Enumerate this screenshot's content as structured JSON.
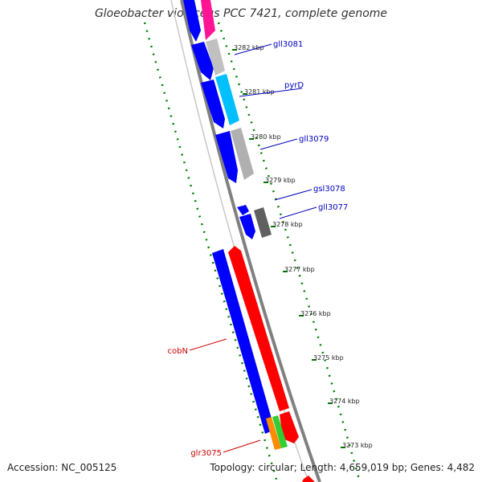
{
  "title": "Gloeobacter violaceus PCC 7421, complete genome",
  "footer": {
    "accession": "Accession: NC_005125",
    "summary": "Topology: circular; Length: 4,659,019 bp; Genes: 4,482"
  },
  "colors": {
    "forward_cds": "#ff0000",
    "reverse_cds": "#0000ff",
    "backbone": "#808080",
    "tick": "#008000",
    "label_reverse": "#0000c0",
    "label_forward": "#cc0000"
  },
  "ticks": [
    {
      "label": "3282 kbp"
    },
    {
      "label": "3281 kbp"
    },
    {
      "label": "3280 kbp"
    },
    {
      "label": "3279 kbp"
    },
    {
      "label": "3278 kbp"
    },
    {
      "label": "3277 kbp"
    },
    {
      "label": "3276 kbp"
    },
    {
      "label": "3275 kbp"
    },
    {
      "label": "3274 kbp"
    },
    {
      "label": "3273 kbp"
    }
  ],
  "gene_labels": [
    {
      "text": "gll3081",
      "strand": "reverse"
    },
    {
      "text": "pyrD",
      "strand": "reverse"
    },
    {
      "text": "gll3079",
      "strand": "reverse"
    },
    {
      "text": "gsl3078",
      "strand": "reverse"
    },
    {
      "text": "gll3077",
      "strand": "reverse"
    },
    {
      "text": "cobN",
      "strand": "forward"
    },
    {
      "text": "glr3075",
      "strand": "forward"
    }
  ]
}
